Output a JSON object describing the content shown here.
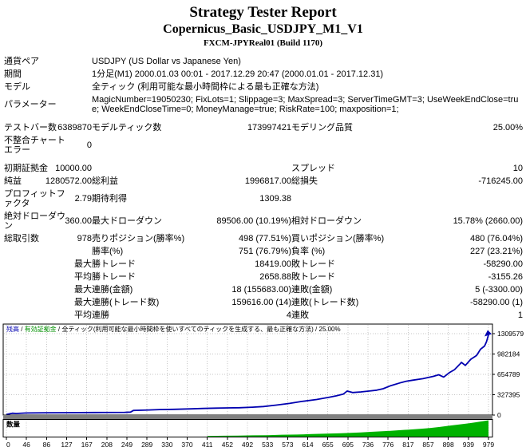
{
  "header": {
    "title": "Strategy Tester Report",
    "subtitle": "Copernicus_Basic_USDJPY_M1_V1",
    "server": "FXCM-JPYReal01 (Build 1170)"
  },
  "info_rows": [
    {
      "label": "通貨ペア",
      "value": "USDJPY (US Dollar vs Japanese Yen)"
    },
    {
      "label": "期間",
      "value": "1分足(M1) 2000.01.03 00:01 - 2017.12.29 20:47 (2000.01.01 - 2017.12.31)"
    },
    {
      "label": "モデル",
      "value": "全ティック (利用可能な最小時間枠による最も正確な方法)"
    },
    {
      "label": "パラメーター",
      "value": "MagicNumber=19050230; FixLots=1; Slippage=3; MaxSpread=3; ServerTimeGMT=3; UseWeekEndClose=true; WeekEndCloseTime=0; MoneyManage=true; RiskRate=100; maxposition=1;",
      "gap": true
    }
  ],
  "stat_rows": [
    {
      "l1": "テストバー数",
      "v1": "6389870",
      "l2": "モデルティック数",
      "v2": "173997421",
      "l3": "モデリング品質",
      "v3": "25.00%"
    },
    {
      "l1": "不整合チャートエラー",
      "v1": "0",
      "l2": "",
      "v2": "",
      "l3": "",
      "v3": "",
      "gap": true
    },
    {
      "l1": "初期証拠金",
      "v1": "10000.00",
      "l2": "",
      "v2": "",
      "l3": "スプレッド",
      "v3": "10"
    },
    {
      "l1": "純益",
      "v1": "1280572.00",
      "l2": "総利益",
      "v2": "1996817.00",
      "l3": "総損失",
      "v3": "-716245.00"
    },
    {
      "l1": "プロフィットファクタ",
      "v1": "2.79",
      "l2": "期待利得",
      "v2": "1309.38",
      "l3": "",
      "v3": ""
    },
    {
      "l1": "絶対ドローダウン",
      "v1": "360.00",
      "l2": "最大ドローダウン",
      "v2": "89506.00 (10.19%)",
      "l3": "相対ドローダウン",
      "v3": "15.78% (2660.00)"
    },
    {
      "l1": "総取引数",
      "v1": "978",
      "l2": "売りポジション(勝率%)",
      "v2": "498 (77.51%)",
      "l3": "買いポジション(勝率%)",
      "v3": "480 (76.04%)"
    },
    {
      "l1": "",
      "v1": "",
      "l2": "勝率(%)",
      "v2": "751 (76.79%)",
      "l3": "負率 (%)",
      "v3": "227 (23.21%)"
    },
    {
      "l1": "",
      "v1": "最大",
      "l2": "勝トレード",
      "v2": "18419.00",
      "l3": "敗トレード",
      "v3": "-58290.00"
    },
    {
      "l1": "",
      "v1": "平均",
      "l2": "勝トレード",
      "v2": "2658.88",
      "l3": "敗トレード",
      "v3": "-3155.26"
    },
    {
      "l1": "",
      "v1": "最大",
      "l2": "連勝(金額)",
      "v2": "18 (155683.00)",
      "l3": "連敗(金額)",
      "v3": "5 (-3300.00)"
    },
    {
      "l1": "",
      "v1": "最大",
      "l2": "連勝(トレード数)",
      "v2": "159616.00 (14)",
      "l3": "連敗(トレード数)",
      "v3": "-58290.00 (1)"
    },
    {
      "l1": "",
      "v1": "平均",
      "l2": "連勝",
      "v2": "4",
      "l3": "連敗",
      "v3": "1"
    }
  ],
  "chart_colors": {
    "balance": "#0000b0",
    "equity": "#009000",
    "volume": "#00b200",
    "grid": "#c4c4c4",
    "separator": "#808080",
    "axis_text": "#000000"
  },
  "chart_data": {
    "type": "line+bar",
    "legend": {
      "balance_label": "残高",
      "equity_label": "有効証拠金",
      "separator": " / ",
      "model_label": "全ティック(利用可能な最小時間枠を使いすべてのティックを生成する、最も正確な方法)",
      "quality_label": "25.00%"
    },
    "volume_label": "数量",
    "xlabel": "",
    "ylabel": "",
    "xlim": [
      0,
      979
    ],
    "ylim": [
      0,
      1375000
    ],
    "y_max": 1309579,
    "y_ticks": [
      1309579,
      982184,
      654789,
      327395,
      0
    ],
    "x_ticks": [
      0,
      46,
      86,
      127,
      167,
      208,
      249,
      289,
      330,
      370,
      411,
      452,
      492,
      533,
      573,
      614,
      655,
      695,
      736,
      776,
      817,
      857,
      898,
      939,
      979
    ],
    "grid": "dotted",
    "balance_series": {
      "name": "残高",
      "points": [
        [
          0,
          10000
        ],
        [
          5,
          18000
        ],
        [
          12,
          30000
        ],
        [
          20,
          26000
        ],
        [
          40,
          34000
        ],
        [
          80,
          37000
        ],
        [
          120,
          39000
        ],
        [
          180,
          41000
        ],
        [
          240,
          44000
        ],
        [
          252,
          48000
        ],
        [
          258,
          75000
        ],
        [
          290,
          82000
        ],
        [
          311,
          88000
        ],
        [
          340,
          93000
        ],
        [
          376,
          100000
        ],
        [
          400,
          106000
        ],
        [
          425,
          112000
        ],
        [
          450,
          115000
        ],
        [
          473,
          118000
        ],
        [
          500,
          127000
        ],
        [
          522,
          137000
        ],
        [
          548,
          160000
        ],
        [
          575,
          187000
        ],
        [
          600,
          220000
        ],
        [
          630,
          250000
        ],
        [
          656,
          287000
        ],
        [
          670,
          310000
        ],
        [
          684,
          337000
        ],
        [
          692,
          387000
        ],
        [
          703,
          362000
        ],
        [
          720,
          372000
        ],
        [
          737,
          387000
        ],
        [
          752,
          400000
        ],
        [
          765,
          424000
        ],
        [
          781,
          474000
        ],
        [
          802,
          524000
        ],
        [
          812,
          545000
        ],
        [
          825,
          561000
        ],
        [
          846,
          586000
        ],
        [
          867,
          623000
        ],
        [
          878,
          648000
        ],
        [
          888,
          611000
        ],
        [
          900,
          686000
        ],
        [
          910,
          730000
        ],
        [
          920,
          811000
        ],
        [
          924,
          848000
        ],
        [
          932,
          798000
        ],
        [
          943,
          898000
        ],
        [
          955,
          960000
        ],
        [
          963,
          1060000
        ],
        [
          971,
          1110000
        ],
        [
          975,
          1180000
        ],
        [
          979,
          1290572
        ]
      ]
    },
    "volume_series": {
      "name": "数量",
      "max_lots": 40,
      "points": [
        [
          408,
          1.5
        ],
        [
          440,
          2
        ],
        [
          470,
          2.5
        ],
        [
          500,
          3
        ],
        [
          530,
          3.5
        ],
        [
          560,
          4.5
        ],
        [
          590,
          5
        ],
        [
          620,
          6
        ],
        [
          650,
          7
        ],
        [
          680,
          8
        ],
        [
          700,
          9
        ],
        [
          720,
          10
        ],
        [
          740,
          11.5
        ],
        [
          760,
          12.5
        ],
        [
          780,
          14
        ],
        [
          800,
          15.5
        ],
        [
          820,
          17
        ],
        [
          840,
          18.5
        ],
        [
          860,
          20.5
        ],
        [
          880,
          23
        ],
        [
          900,
          26
        ],
        [
          920,
          29
        ],
        [
          940,
          32
        ],
        [
          955,
          34.5
        ],
        [
          968,
          37
        ],
        [
          979,
          39
        ]
      ]
    }
  }
}
